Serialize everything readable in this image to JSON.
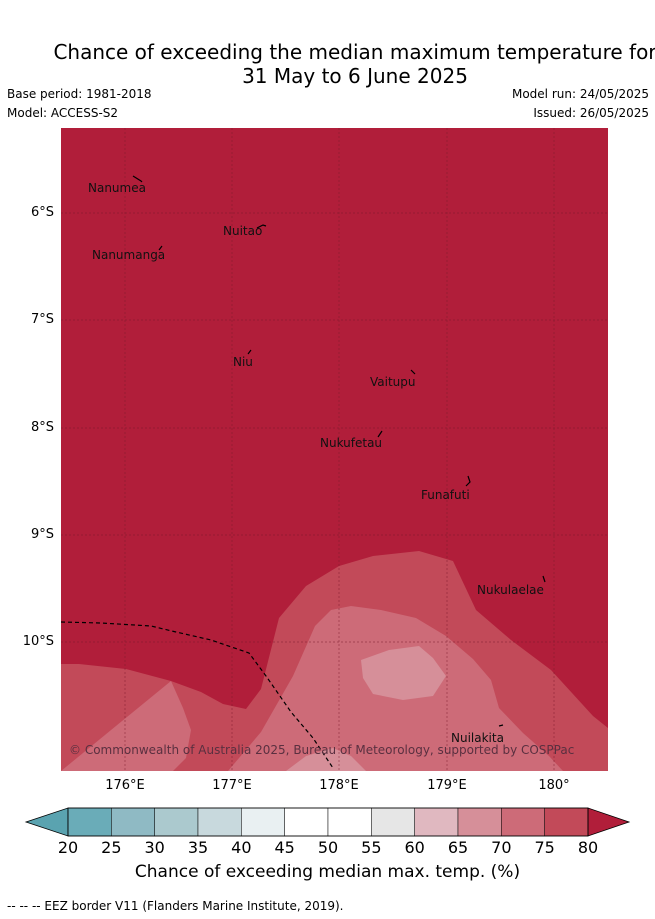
{
  "title_line1": "Chance of exceeding the median maximum temperature for",
  "title_line2": "31 May to 6 June 2025",
  "base_period": "Base period: 1981-2018",
  "model": "Model: ACCESS-S2",
  "model_run": "Model run: 24/05/2025",
  "issued": "Issued: 26/05/2025",
  "lat_labels": [
    "6°S",
    "7°S",
    "8°S",
    "9°S",
    "10°S"
  ],
  "lon_labels": [
    "176°E",
    "177°E",
    "178°E",
    "179°E",
    "180°"
  ],
  "places": [
    "Nanumea",
    "Nuitao",
    "Nanumanga",
    "Niu",
    "Vaitupu",
    "Nukufetau",
    "Funafuti",
    "Nukulaelae",
    "Nuilakita"
  ],
  "copyright": "© Commonwealth of Australia 2025, Bureau of Meteorology, supported by COSPPac",
  "colorbar": {
    "ticks": [
      "20",
      "25",
      "30",
      "35",
      "40",
      "45",
      "50",
      "55",
      "60",
      "65",
      "70",
      "75",
      "80"
    ],
    "colors": [
      "#6aacb8",
      "#8fbac4",
      "#abc9ce",
      "#c8d9dd",
      "#e9f0f2",
      "#ffffff",
      "#ffffff",
      "#e6e6e6",
      "#e0b8c0",
      "#d68f99",
      "#cd6b78",
      "#c24a59"
    ],
    "under_color": "#5aa3b0",
    "over_color": "#b11e3a",
    "title": "Chance of exceeding median max. temp. (%)"
  },
  "legend": "-- -- -- EEZ border V11 (Flanders Marine Institute, 2019)."
}
